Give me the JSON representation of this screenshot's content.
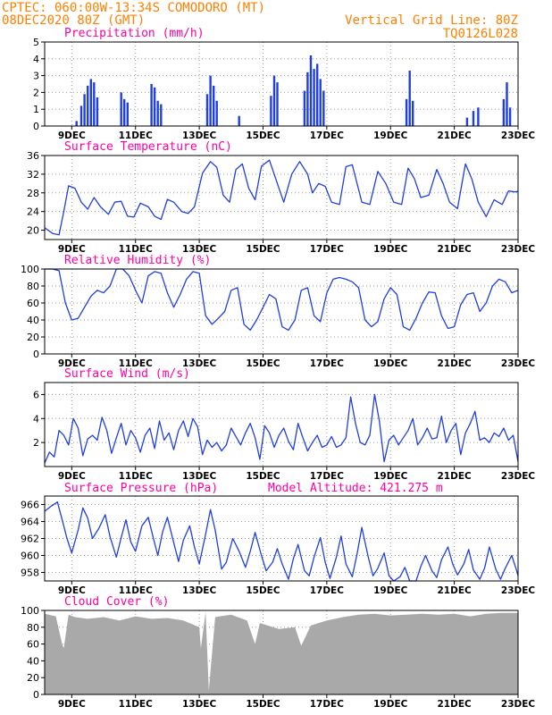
{
  "header": {
    "line1_left": "CPTEC:  060:00W-13:34S  COMODORO (MT)",
    "line2_left": "08DEC2020 80Z (GMT)",
    "line1_right": "Vertical Grid Line: 80Z",
    "line2_right": "TQ0126L028"
  },
  "colors": {
    "header": "#ff8000",
    "title": "#ff00a0",
    "series": "#1f3fe0",
    "cloud": "#a9a9a9"
  },
  "chart_data": [
    {
      "id": "precip",
      "type": "bar",
      "title": "Precipitation (mm/h)",
      "ylim": [
        0,
        5
      ],
      "yticks": [
        0,
        1,
        2,
        3,
        4,
        5
      ],
      "x_range_days": [
        8.15,
        23.0
      ],
      "x_ticks": [
        {
          "day": 9,
          "label": "9DEC"
        },
        {
          "day": 11,
          "label": "11DEC"
        },
        {
          "day": 13,
          "label": "13DEC"
        },
        {
          "day": 15,
          "label": "15DEC"
        },
        {
          "day": 17,
          "label": "17DEC"
        },
        {
          "day": 19,
          "label": "19DEC"
        },
        {
          "day": 21,
          "label": "21DEC"
        },
        {
          "day": 23,
          "label": "23DEC"
        }
      ],
      "x": [
        9.15,
        9.3,
        9.4,
        9.5,
        9.6,
        9.7,
        9.8,
        10.55,
        10.65,
        10.75,
        11.5,
        11.6,
        11.7,
        11.8,
        13.25,
        13.35,
        13.45,
        13.55,
        14.25,
        15.25,
        15.35,
        15.45,
        16.3,
        16.4,
        16.5,
        16.6,
        16.7,
        16.8,
        16.9,
        19.5,
        19.6,
        19.7,
        21.4,
        21.6,
        21.75,
        22.55,
        22.65,
        22.75
      ],
      "values": [
        0.3,
        1.2,
        1.9,
        2.4,
        2.8,
        2.6,
        1.7,
        2.0,
        1.6,
        1.4,
        2.5,
        2.3,
        1.5,
        1.3,
        1.9,
        3.0,
        2.4,
        1.5,
        0.6,
        1.8,
        3.0,
        2.6,
        2.1,
        3.2,
        4.2,
        3.4,
        3.7,
        2.8,
        2.1,
        1.6,
        3.3,
        1.5,
        0.5,
        0.9,
        1.1,
        1.6,
        2.6,
        1.1
      ]
    },
    {
      "id": "temp",
      "type": "line",
      "title": "Surface Temperature (nC)",
      "ylim": [
        18,
        36
      ],
      "yticks": [
        20,
        24,
        28,
        32,
        36
      ],
      "x_range_days": [
        8.15,
        23.0
      ],
      "x_ticks": [
        {
          "day": 9,
          "label": "9DEC"
        },
        {
          "day": 11,
          "label": "11DEC"
        },
        {
          "day": 13,
          "label": "13DEC"
        },
        {
          "day": 15,
          "label": "15DEC"
        },
        {
          "day": 17,
          "label": "17DEC"
        },
        {
          "day": 19,
          "label": "19DEC"
        },
        {
          "day": 21,
          "label": "21DEC"
        },
        {
          "day": 23,
          "label": "23DEC"
        }
      ],
      "x": [
        8.15,
        8.4,
        8.6,
        8.75,
        8.9,
        9.1,
        9.3,
        9.5,
        9.7,
        9.9,
        10.15,
        10.35,
        10.55,
        10.75,
        10.95,
        11.15,
        11.4,
        11.6,
        11.8,
        12.0,
        12.2,
        12.45,
        12.65,
        12.85,
        13.1,
        13.35,
        13.55,
        13.75,
        13.95,
        14.15,
        14.35,
        14.55,
        14.75,
        14.95,
        15.2,
        15.45,
        15.65,
        15.9,
        16.15,
        16.4,
        16.55,
        16.75,
        16.95,
        17.15,
        17.4,
        17.6,
        17.8,
        18.1,
        18.35,
        18.6,
        18.85,
        19.1,
        19.35,
        19.55,
        19.75,
        19.95,
        20.2,
        20.45,
        20.65,
        20.85,
        21.1,
        21.35,
        21.55,
        21.75,
        22.0,
        22.25,
        22.5,
        22.7,
        22.9,
        23.0
      ],
      "values": [
        20.5,
        19.3,
        19.0,
        24.0,
        29.5,
        29.0,
        26.0,
        24.5,
        27.0,
        25.0,
        23.4,
        26.0,
        26.2,
        23.0,
        22.8,
        25.8,
        25.0,
        23.0,
        22.3,
        26.6,
        26.0,
        24.0,
        23.6,
        25.0,
        32.2,
        34.7,
        33.5,
        27.5,
        26.0,
        33.0,
        34.2,
        29.0,
        26.5,
        33.7,
        35.0,
        30.0,
        26.0,
        32.0,
        34.7,
        32.0,
        28.0,
        30.0,
        29.4,
        26.0,
        25.5,
        33.6,
        34.0,
        26.0,
        25.5,
        32.6,
        30.0,
        26.0,
        25.5,
        33.3,
        31.0,
        27.0,
        27.5,
        33.0,
        30.0,
        26.0,
        24.6,
        34.2,
        31.0,
        26.0,
        22.9,
        26.5,
        25.5,
        28.4,
        28.2,
        28.3
      ]
    },
    {
      "id": "rh",
      "type": "line",
      "title": "Relative Humidity (%)",
      "ylim": [
        0,
        100
      ],
      "yticks": [
        0,
        20,
        40,
        60,
        80,
        100
      ],
      "x_range_days": [
        8.15,
        23.0
      ],
      "x_ticks": [
        {
          "day": 9,
          "label": "9DEC"
        },
        {
          "day": 11,
          "label": "11DEC"
        },
        {
          "day": 13,
          "label": "13DEC"
        },
        {
          "day": 15,
          "label": "15DEC"
        },
        {
          "day": 17,
          "label": "17DEC"
        },
        {
          "day": 19,
          "label": "19DEC"
        },
        {
          "day": 21,
          "label": "21DEC"
        },
        {
          "day": 23,
          "label": "23DEC"
        }
      ],
      "x": [
        8.15,
        8.4,
        8.6,
        8.8,
        9.0,
        9.2,
        9.4,
        9.6,
        9.8,
        10.0,
        10.2,
        10.4,
        10.6,
        10.8,
        11.0,
        11.2,
        11.4,
        11.6,
        11.8,
        12.0,
        12.2,
        12.4,
        12.6,
        12.8,
        13.0,
        13.2,
        13.4,
        13.6,
        13.8,
        14.0,
        14.2,
        14.4,
        14.6,
        14.8,
        15.0,
        15.2,
        15.4,
        15.6,
        15.8,
        16.0,
        16.2,
        16.4,
        16.6,
        16.8,
        17.0,
        17.2,
        17.4,
        17.6,
        17.8,
        18.0,
        18.2,
        18.4,
        18.6,
        18.8,
        19.0,
        19.2,
        19.4,
        19.6,
        19.8,
        20.0,
        20.2,
        20.4,
        20.6,
        20.8,
        21.0,
        21.2,
        21.4,
        21.6,
        21.8,
        22.0,
        22.2,
        22.4,
        22.6,
        22.8,
        23.0
      ],
      "values": [
        100,
        100,
        98,
        60,
        40,
        42,
        55,
        68,
        75,
        72,
        80,
        100,
        100,
        92,
        75,
        60,
        92,
        97,
        95,
        72,
        55,
        70,
        88,
        97,
        95,
        45,
        35,
        42,
        50,
        75,
        78,
        35,
        28,
        40,
        55,
        70,
        65,
        32,
        28,
        40,
        75,
        78,
        45,
        38,
        72,
        88,
        90,
        88,
        85,
        78,
        40,
        32,
        38,
        65,
        78,
        70,
        32,
        28,
        42,
        60,
        73,
        72,
        45,
        30,
        32,
        58,
        70,
        72,
        50,
        60,
        80,
        88,
        85,
        72,
        75
      ]
    },
    {
      "id": "wind",
      "type": "line",
      "title": "Surface Wind (m/s)",
      "ylim": [
        0,
        7
      ],
      "yticks": [
        2,
        4,
        6
      ],
      "x_range_days": [
        8.15,
        23.0
      ],
      "x_ticks": [
        {
          "day": 9,
          "label": "9DEC"
        },
        {
          "day": 11,
          "label": "11DEC"
        },
        {
          "day": 13,
          "label": "13DEC"
        },
        {
          "day": 15,
          "label": "15DEC"
        },
        {
          "day": 17,
          "label": "17DEC"
        },
        {
          "day": 19,
          "label": "19DEC"
        },
        {
          "day": 21,
          "label": "21DEC"
        },
        {
          "day": 23,
          "label": "23DEC"
        }
      ],
      "x": [
        8.15,
        8.3,
        8.45,
        8.6,
        8.75,
        8.9,
        9.05,
        9.2,
        9.35,
        9.5,
        9.65,
        9.8,
        9.95,
        10.1,
        10.25,
        10.4,
        10.55,
        10.7,
        10.85,
        11.0,
        11.15,
        11.3,
        11.45,
        11.6,
        11.75,
        11.9,
        12.05,
        12.2,
        12.35,
        12.5,
        12.65,
        12.8,
        12.95,
        13.1,
        13.25,
        13.4,
        13.55,
        13.7,
        13.85,
        14.0,
        14.15,
        14.3,
        14.45,
        14.6,
        14.75,
        14.9,
        15.05,
        15.2,
        15.35,
        15.5,
        15.65,
        15.8,
        15.95,
        16.1,
        16.25,
        16.4,
        16.55,
        16.7,
        16.85,
        17.0,
        17.15,
        17.3,
        17.45,
        17.6,
        17.75,
        17.9,
        18.05,
        18.2,
        18.35,
        18.5,
        18.65,
        18.8,
        18.95,
        19.1,
        19.25,
        19.4,
        19.55,
        19.7,
        19.85,
        20.0,
        20.15,
        20.3,
        20.45,
        20.6,
        20.75,
        20.9,
        21.05,
        21.2,
        21.35,
        21.5,
        21.65,
        21.8,
        21.95,
        22.1,
        22.25,
        22.4,
        22.55,
        22.7,
        22.85,
        23.0
      ],
      "values": [
        0.3,
        1.2,
        0.8,
        3.0,
        2.6,
        1.8,
        4.0,
        3.2,
        0.9,
        2.3,
        2.6,
        2.2,
        4.1,
        3.0,
        1.1,
        2.4,
        3.6,
        1.8,
        3.0,
        2.4,
        1.2,
        2.6,
        3.2,
        1.5,
        3.8,
        2.2,
        2.8,
        1.4,
        3.0,
        3.8,
        2.5,
        4.0,
        3.3,
        1.0,
        2.2,
        1.6,
        2.0,
        1.3,
        1.8,
        3.2,
        2.5,
        1.8,
        2.8,
        3.6,
        2.4,
        0.6,
        3.4,
        2.8,
        1.6,
        2.6,
        3.2,
        2.1,
        1.4,
        3.6,
        2.4,
        1.3,
        2.0,
        2.6,
        1.6,
        1.8,
        2.5,
        1.6,
        1.8,
        2.4,
        5.8,
        3.6,
        2.0,
        1.8,
        2.6,
        6.0,
        3.8,
        0.4,
        2.2,
        2.6,
        1.8,
        2.4,
        3.0,
        4.0,
        1.8,
        2.4,
        3.2,
        2.3,
        2.4,
        4.2,
        2.0,
        3.0,
        3.6,
        1.0,
        2.8,
        3.6,
        4.6,
        2.2,
        2.4,
        2.0,
        2.8,
        2.5,
        3.2,
        2.2,
        2.6,
        0.4
      ]
    },
    {
      "id": "pressure",
      "type": "line",
      "title": "Surface Pressure (hPa)",
      "annotation": "Model Altitude: 421.275 m",
      "ylim": [
        957,
        967
      ],
      "yticks": [
        958,
        960,
        962,
        964,
        966
      ],
      "x_range_days": [
        8.15,
        23.0
      ],
      "x_ticks": [
        {
          "day": 9,
          "label": "9DEC"
        },
        {
          "day": 11,
          "label": "11DEC"
        },
        {
          "day": 13,
          "label": "13DEC"
        },
        {
          "day": 15,
          "label": "15DEC"
        },
        {
          "day": 17,
          "label": "17DEC"
        },
        {
          "day": 19,
          "label": "19DEC"
        },
        {
          "day": 21,
          "label": "21DEC"
        },
        {
          "day": 23,
          "label": "23DEC"
        }
      ],
      "x": [
        8.15,
        8.35,
        8.55,
        8.7,
        8.85,
        9.0,
        9.2,
        9.35,
        9.5,
        9.65,
        9.85,
        10.05,
        10.2,
        10.4,
        10.55,
        10.7,
        10.85,
        11.0,
        11.2,
        11.4,
        11.55,
        11.7,
        11.85,
        12.0,
        12.2,
        12.35,
        12.5,
        12.7,
        12.85,
        13.0,
        13.2,
        13.35,
        13.5,
        13.7,
        13.85,
        14.05,
        14.25,
        14.45,
        14.6,
        14.75,
        14.95,
        15.1,
        15.3,
        15.45,
        15.6,
        15.8,
        15.95,
        16.1,
        16.3,
        16.45,
        16.6,
        16.8,
        16.95,
        17.1,
        17.3,
        17.45,
        17.6,
        17.8,
        17.95,
        18.1,
        18.3,
        18.45,
        18.6,
        18.8,
        18.95,
        19.1,
        19.3,
        19.45,
        19.6,
        19.8,
        19.95,
        20.1,
        20.3,
        20.45,
        20.6,
        20.8,
        20.95,
        21.1,
        21.3,
        21.45,
        21.6,
        21.8,
        21.95,
        22.1,
        22.3,
        22.45,
        22.6,
        22.8,
        22.95,
        23.0
      ],
      "values": [
        965.2,
        965.8,
        966.3,
        964.2,
        962.0,
        960.3,
        963.0,
        965.6,
        964.4,
        962.0,
        963.2,
        964.8,
        962.2,
        959.8,
        962.1,
        964.2,
        961.6,
        960.5,
        963.5,
        964.5,
        962.2,
        960.0,
        962.8,
        964.5,
        961.5,
        959.3,
        961.8,
        963.5,
        961.0,
        959.0,
        962.5,
        965.4,
        963.0,
        958.4,
        959.2,
        962.0,
        960.5,
        958.6,
        960.5,
        962.7,
        960.0,
        958.2,
        959.2,
        960.8,
        959.0,
        957.2,
        959.6,
        961.3,
        958.2,
        957.6,
        959.8,
        962.1,
        959.2,
        957.3,
        959.8,
        962.3,
        959.0,
        957.5,
        960.2,
        963.3,
        959.8,
        957.6,
        958.5,
        960.3,
        957.6,
        957.0,
        957.5,
        958.6,
        957.0,
        956.8,
        958.7,
        960.0,
        958.2,
        957.4,
        959.5,
        961.0,
        959.0,
        957.7,
        959.0,
        960.7,
        958.3,
        957.2,
        958.5,
        961.0,
        958.4,
        957.2,
        958.5,
        960.0,
        958.3,
        957.6
      ]
    },
    {
      "id": "cloud",
      "type": "area",
      "title": "Cloud Cover (%)",
      "ylim": [
        0,
        100
      ],
      "yticks": [
        0,
        20,
        40,
        60,
        80,
        100
      ],
      "x_range_days": [
        8.15,
        23.0
      ],
      "x_ticks": [
        {
          "day": 9,
          "label": "9DEC"
        },
        {
          "day": 11,
          "label": "11DEC"
        },
        {
          "day": 13,
          "label": "13DEC"
        },
        {
          "day": 15,
          "label": "15DEC"
        },
        {
          "day": 17,
          "label": "17DEC"
        },
        {
          "day": 19,
          "label": "19DEC"
        },
        {
          "day": 21,
          "label": "21DEC"
        },
        {
          "day": 23,
          "label": "23DEC"
        }
      ],
      "x": [
        8.15,
        8.5,
        8.7,
        8.75,
        8.9,
        9.1,
        9.5,
        10.0,
        10.5,
        11.0,
        11.5,
        12.0,
        12.5,
        13.0,
        13.05,
        13.2,
        13.3,
        13.5,
        14.0,
        14.5,
        14.75,
        14.9,
        15.5,
        16.0,
        16.2,
        16.5,
        17.0,
        17.5,
        18.0,
        18.5,
        19.0,
        19.5,
        20.0,
        20.5,
        21.0,
        21.5,
        22.0,
        22.5,
        23.0
      ],
      "values": [
        96,
        93,
        60,
        55,
        95,
        92,
        90,
        92,
        88,
        93,
        90,
        91,
        88,
        80,
        55,
        98,
        5,
        92,
        95,
        88,
        60,
        85,
        78,
        80,
        58,
        82,
        88,
        92,
        95,
        96,
        94,
        95,
        96,
        95,
        96,
        93,
        96,
        97,
        97
      ]
    }
  ]
}
